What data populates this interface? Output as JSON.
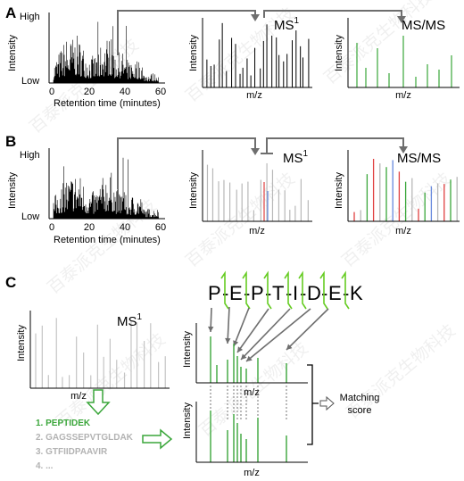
{
  "panels": {
    "A": {
      "label": "A",
      "chrom": {
        "y_high": "High",
        "y_low": "Low",
        "y_axis": "Intensity",
        "x_axis": "Retention time (minutes)",
        "x_ticks": [
          "0",
          "20",
          "40",
          "60"
        ]
      },
      "ms1": {
        "title": "MS",
        "title_sup": "1",
        "x_axis": "m/z",
        "y_axis": "Intensity"
      },
      "msms": {
        "title": "MS/MS",
        "x_axis": "m/z",
        "y_axis": "Intensity"
      }
    },
    "B": {
      "label": "B",
      "chrom": {
        "y_high": "High",
        "y_low": "Low",
        "y_axis": "Intensity",
        "x_axis": "Retention time (minutes)",
        "x_ticks": [
          "0",
          "20",
          "40",
          "60"
        ]
      },
      "ms1": {
        "title": "MS",
        "title_sup": "1",
        "x_axis": "m/z",
        "y_axis": "Intensity"
      },
      "msms": {
        "title": "MS/MS",
        "x_axis": "m/z",
        "y_axis": "Intensity"
      }
    },
    "C": {
      "label": "C",
      "ms1": {
        "title": "MS",
        "title_sup": "1",
        "x_axis": "m/z",
        "y_axis": "Intensity"
      },
      "peptide": [
        "P",
        "E",
        "P",
        "T",
        "I",
        "D",
        "E",
        "K"
      ],
      "candidates": [
        "1. PEPTIDEK",
        "2. GAGSSEPVTGLDAK",
        "3. GTFIIDPAAVIR",
        "4. ..."
      ],
      "observed": {
        "y_axis": "Intensity",
        "x_axis": "m/z"
      },
      "theoretical": {
        "y_axis": "Intensity",
        "x_axis": "m/z"
      },
      "score": [
        "Matching",
        "score"
      ]
    }
  },
  "watermark": "百泰派克生物科技",
  "colors": {
    "green": "#3aa63a",
    "red": "#e04040",
    "blue": "#6688dd",
    "gray": "#b8b8b8",
    "arrow": "#6e6e6e",
    "frag": "#66cc22"
  }
}
